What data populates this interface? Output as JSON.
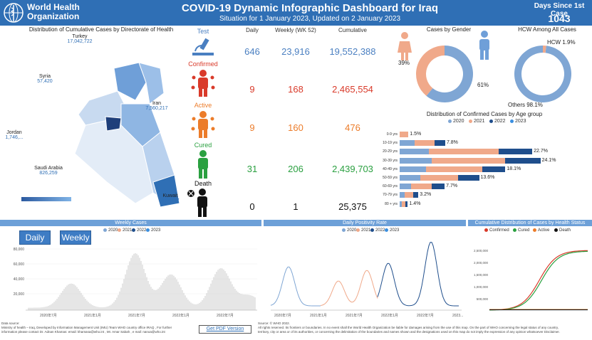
{
  "header": {
    "org_name_line1": "World Health",
    "org_name_line2": "Organization",
    "title": "COVID-19 Dynamic Infographic Dashboard for Iraq",
    "subtitle": "Situation for 1 January 2023, Updated on 2 January 2023",
    "days_label": "Days Since 1st Case",
    "days_value": "1043"
  },
  "map": {
    "title": "Distribution of Cumulative Cases by Directorate of Health",
    "countries": [
      {
        "name": "Turkey",
        "value": "17,042,722"
      },
      {
        "name": "Syria",
        "value": "57,420"
      },
      {
        "name": "Iran",
        "value": "7,560,217"
      },
      {
        "name": "Jordan",
        "value": "1,746,..."
      },
      {
        "name": "Saudi Arabia",
        "value": "826,259"
      },
      {
        "name": "Kuwait",
        "value": "662,747"
      }
    ]
  },
  "indicators": {
    "col_daily": "Daily",
    "col_weekly": "Weekly (WK 52)",
    "col_cumulative": "Cumulative",
    "rows": [
      {
        "label": "Test",
        "daily": "646",
        "weekly": "23,916",
        "cumulative": "19,552,388",
        "color": "#4a7fc1"
      },
      {
        "label": "Confirmed",
        "daily": "9",
        "weekly": "168",
        "cumulative": "2,465,554",
        "color": "#d93a2a"
      },
      {
        "label": "Active",
        "daily": "9",
        "weekly": "160",
        "cumulative": "476",
        "color": "#ec7c2a"
      },
      {
        "label": "Cured",
        "daily": "31",
        "weekly": "206",
        "cumulative": "2,439,703",
        "color": "#2aa040"
      },
      {
        "label": "Death",
        "daily": "0",
        "weekly": "1",
        "cumulative": "25,375",
        "color": "#111111"
      }
    ]
  },
  "gender": {
    "title": "Cases by Gender",
    "female_pct": "39%",
    "male_pct": "61%",
    "female_value": 39,
    "male_value": 61
  },
  "hcw": {
    "title": "HCW Among All Cases",
    "hcw_label": "HCW 1.9%",
    "others_label": "Others 98.1%",
    "hcw_value": 1.9
  },
  "age_chart": {
    "title": "Distribution of Confirmed Cases by Age group",
    "legend": [
      "2020",
      "2021",
      "2022",
      "2023"
    ],
    "legend_colors": [
      "#7fa6d4",
      "#f0a98a",
      "#1f4e8c",
      "#3a8fe0"
    ],
    "groups": [
      {
        "label": "0-9 yrs",
        "total": "1.5%",
        "segs": [
          0,
          1.5,
          0
        ]
      },
      {
        "label": "10-19 yrs",
        "total": "7.8%",
        "segs": [
          2.5,
          3.5,
          1.8
        ]
      },
      {
        "label": "20-29 yrs",
        "total": "22.7%",
        "segs": [
          5,
          12,
          5.7
        ]
      },
      {
        "label": "30-39 yrs",
        "total": "24.1%",
        "segs": [
          5.5,
          12.5,
          6.1
        ]
      },
      {
        "label": "40-49 yrs",
        "total": "18.1%",
        "segs": [
          4.5,
          9.6,
          4
        ]
      },
      {
        "label": "50-59 yrs",
        "total": "13.6%",
        "segs": [
          3.5,
          6.5,
          3.6
        ]
      },
      {
        "label": "60-69 yrs",
        "total": "7.7%",
        "segs": [
          2,
          3.5,
          2.2
        ]
      },
      {
        "label": "70-79 yrs",
        "total": "3.2%",
        "segs": [
          0.8,
          1.5,
          0.9
        ]
      },
      {
        "label": "80 + yrs",
        "total": "1.4%",
        "segs": [
          0.4,
          0.6,
          0.4
        ]
      }
    ]
  },
  "weekly_cases": {
    "title": "Weekly Cases",
    "daily_button": "Daily",
    "weekly_button": "Weekly",
    "legend": [
      "2020",
      "2021",
      "2022",
      "2023"
    ],
    "y_ticks": [
      "80,000",
      "60,000",
      "40,000",
      "20,000"
    ],
    "x_ticks": [
      "2020年7月",
      "2021年1月",
      "2021年7月",
      "2022年1月",
      "2022年7月"
    ]
  },
  "positivity": {
    "title": "Daily Positivity Rate",
    "legend": [
      "2020",
      "2021",
      "2022",
      "2023"
    ],
    "x_ticks": [
      "2020年7月",
      "2021年1月",
      "2021年7月",
      "2022年1月",
      "2022年7月",
      "2023..."
    ]
  },
  "cumulative_status": {
    "title": "Cumulative Distribution of Cases by Health Status",
    "legend": [
      "Confirmed",
      "Cured",
      "Active",
      "Death"
    ],
    "legend_colors": [
      "#d93a2a",
      "#2aa040",
      "#ec7c2a",
      "#111111"
    ],
    "y_ticks": [
      "2,500,000",
      "2,000,000",
      "1,500,000",
      "1,000,000",
      "500,000"
    ]
  },
  "footer": {
    "left_text_1": "Data source:",
    "left_text_2": "Ministry of health – Iraq, Developed by Information Management Unit (IMU) Team WHO country office IRAQ , For further",
    "left_text_3": "information please contact Dr. Adnan Khamas: email: khamasa@who.int , Mr. Amar Sabah , e mail: nanoa@who.int",
    "pdf_button": "Get PDF Version",
    "right_text_1": "Source: © WHO 2022.",
    "right_text_2": "All rights reserved. Its frontiers or boundaries. In no event shall the World Health Organization be liable for damages arising from the use of this map. On the part of WHO concerning the legal status of any country,",
    "right_text_3": "territory, city or area or of its authorities, or concerning the delimitation of the boundaries and names shown and the designations used on this map do not imply the expression of any opinion whatsoever Disclaimer."
  }
}
